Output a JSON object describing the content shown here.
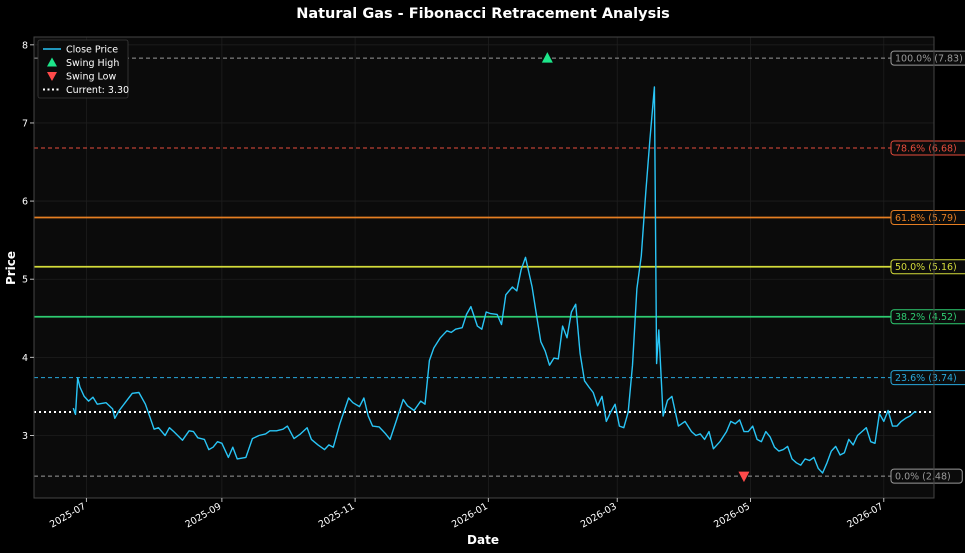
{
  "chart_data": {
    "type": "line",
    "title": "Natural Gas - Fibonacci Retracement Analysis",
    "xlabel": "Date",
    "ylabel": "Price",
    "ylim": [
      2.2,
      8.1
    ],
    "xlim": [
      "2025-06-07",
      "2026-07-24"
    ],
    "grid": true,
    "legend_placement": "top-left",
    "colors": {
      "background": "#000000",
      "plot_background": "#0b0b0b",
      "axes": "#444444",
      "grid": "#1e1e1e",
      "close_price": "#29c5f6",
      "swing_high": "#1de68a",
      "swing_low": "#ff4a4a",
      "current": "#ffffff"
    },
    "x_ticks": [
      {
        "date": "2025-07-01",
        "label": "2025-07"
      },
      {
        "date": "2025-09-01",
        "label": "2025-09"
      },
      {
        "date": "2025-11-01",
        "label": "2025-11"
      },
      {
        "date": "2026-01-01",
        "label": "2026-01"
      },
      {
        "date": "2026-03-01",
        "label": "2026-03"
      },
      {
        "date": "2026-05-01",
        "label": "2026-05"
      },
      {
        "date": "2026-07-01",
        "label": "2026-07"
      }
    ],
    "y_ticks": [
      3,
      4,
      5,
      6,
      7,
      8
    ],
    "legend": [
      {
        "key": "line",
        "label": "Close Price"
      },
      {
        "key": "swing_high",
        "label": "Swing High"
      },
      {
        "key": "swing_low",
        "label": "Swing Low"
      },
      {
        "key": "current",
        "label": "Current: 3.30"
      }
    ],
    "fib_levels": [
      {
        "label": "100.0% (7.83)",
        "value": 7.83,
        "color": "#9a9a9a",
        "style": "dashed"
      },
      {
        "label": "78.6% (6.68)",
        "value": 6.68,
        "color": "#e74c3c",
        "style": "dashed"
      },
      {
        "label": "61.8% (5.79)",
        "value": 5.79,
        "color": "#e67e22",
        "style": "solid"
      },
      {
        "label": "50.0% (5.16)",
        "value": 5.16,
        "color": "#d4dc3a",
        "style": "solid"
      },
      {
        "label": "38.2% (4.52)",
        "value": 4.52,
        "color": "#2ecc71",
        "style": "solid"
      },
      {
        "label": "23.6% (3.74)",
        "value": 3.74,
        "color": "#29a8dc",
        "style": "dashed"
      },
      {
        "label": "0.0% (2.48)",
        "value": 2.48,
        "color": "#9a9a9a",
        "style": "dashed"
      }
    ],
    "current_price": 3.3,
    "swing_high": {
      "date": "2026-01-28",
      "value": 7.83
    },
    "swing_low": {
      "date": "2026-04-28",
      "value": 2.48
    },
    "series": [
      {
        "name": "Close Price",
        "points": [
          [
            "2025-06-25",
            3.35
          ],
          [
            "2025-06-26",
            3.27
          ],
          [
            "2025-06-27",
            3.74
          ],
          [
            "2025-06-28",
            3.62
          ],
          [
            "2025-06-30",
            3.5
          ],
          [
            "2025-07-02",
            3.44
          ],
          [
            "2025-07-04",
            3.49
          ],
          [
            "2025-07-06",
            3.4
          ],
          [
            "2025-07-10",
            3.42
          ],
          [
            "2025-07-13",
            3.34
          ],
          [
            "2025-07-14",
            3.22
          ],
          [
            "2025-07-16",
            3.32
          ],
          [
            "2025-07-19",
            3.43
          ],
          [
            "2025-07-22",
            3.54
          ],
          [
            "2025-07-25",
            3.55
          ],
          [
            "2025-07-28",
            3.4
          ],
          [
            "2025-07-30",
            3.24
          ],
          [
            "2025-08-01",
            3.08
          ],
          [
            "2025-08-03",
            3.1
          ],
          [
            "2025-08-06",
            3.0
          ],
          [
            "2025-08-08",
            3.1
          ],
          [
            "2025-08-10",
            3.05
          ],
          [
            "2025-08-14",
            2.94
          ],
          [
            "2025-08-17",
            3.06
          ],
          [
            "2025-08-19",
            3.05
          ],
          [
            "2025-08-21",
            2.97
          ],
          [
            "2025-08-24",
            2.95
          ],
          [
            "2025-08-26",
            2.82
          ],
          [
            "2025-08-28",
            2.85
          ],
          [
            "2025-08-30",
            2.92
          ],
          [
            "2025-09-01",
            2.9
          ],
          [
            "2025-09-04",
            2.72
          ],
          [
            "2025-09-06",
            2.85
          ],
          [
            "2025-09-08",
            2.7
          ],
          [
            "2025-09-12",
            2.72
          ],
          [
            "2025-09-15",
            2.96
          ],
          [
            "2025-09-18",
            3.0
          ],
          [
            "2025-09-21",
            3.02
          ],
          [
            "2025-09-23",
            3.06
          ],
          [
            "2025-09-26",
            3.06
          ],
          [
            "2025-09-29",
            3.08
          ],
          [
            "2025-10-01",
            3.12
          ],
          [
            "2025-10-04",
            2.96
          ],
          [
            "2025-10-07",
            3.02
          ],
          [
            "2025-10-10",
            3.1
          ],
          [
            "2025-10-12",
            2.95
          ],
          [
            "2025-10-15",
            2.88
          ],
          [
            "2025-10-18",
            2.82
          ],
          [
            "2025-10-20",
            2.88
          ],
          [
            "2025-10-22",
            2.85
          ],
          [
            "2025-10-25",
            3.15
          ],
          [
            "2025-10-29",
            3.48
          ],
          [
            "2025-10-31",
            3.42
          ],
          [
            "2025-11-03",
            3.37
          ],
          [
            "2025-11-05",
            3.48
          ],
          [
            "2025-11-07",
            3.25
          ],
          [
            "2025-11-09",
            3.12
          ],
          [
            "2025-11-12",
            3.11
          ],
          [
            "2025-11-15",
            3.02
          ],
          [
            "2025-11-17",
            2.95
          ],
          [
            "2025-11-20",
            3.2
          ],
          [
            "2025-11-23",
            3.46
          ],
          [
            "2025-11-25",
            3.38
          ],
          [
            "2025-11-28",
            3.32
          ],
          [
            "2025-12-01",
            3.44
          ],
          [
            "2025-12-03",
            3.4
          ],
          [
            "2025-12-05",
            3.96
          ],
          [
            "2025-12-07",
            4.12
          ],
          [
            "2025-12-10",
            4.25
          ],
          [
            "2025-12-13",
            4.34
          ],
          [
            "2025-12-15",
            4.32
          ],
          [
            "2025-12-17",
            4.36
          ],
          [
            "2025-12-20",
            4.38
          ],
          [
            "2025-12-22",
            4.55
          ],
          [
            "2025-12-24",
            4.65
          ],
          [
            "2025-12-27",
            4.4
          ],
          [
            "2025-12-29",
            4.36
          ],
          [
            "2025-12-31",
            4.58
          ],
          [
            "2026-01-02",
            4.56
          ],
          [
            "2026-01-05",
            4.55
          ],
          [
            "2026-01-07",
            4.42
          ],
          [
            "2026-01-09",
            4.8
          ],
          [
            "2026-01-12",
            4.9
          ],
          [
            "2026-01-14",
            4.85
          ],
          [
            "2026-01-16",
            5.12
          ],
          [
            "2026-01-18",
            5.28
          ],
          [
            "2026-01-21",
            4.9
          ],
          [
            "2026-01-23",
            4.55
          ],
          [
            "2026-01-25",
            4.2
          ],
          [
            "2026-01-27",
            4.08
          ],
          [
            "2026-01-29",
            3.9
          ],
          [
            "2026-01-31",
            3.99
          ],
          [
            "2026-02-02",
            3.98
          ],
          [
            "2026-02-04",
            4.4
          ],
          [
            "2026-02-06",
            4.25
          ],
          [
            "2026-02-08",
            4.58
          ],
          [
            "2026-02-10",
            4.68
          ],
          [
            "2026-02-12",
            4.05
          ],
          [
            "2026-02-14",
            3.7
          ],
          [
            "2026-02-16",
            3.62
          ],
          [
            "2026-02-18",
            3.55
          ],
          [
            "2026-02-20",
            3.38
          ],
          [
            "2026-02-22",
            3.5
          ],
          [
            "2026-02-24",
            3.18
          ],
          [
            "2026-02-26",
            3.3
          ],
          [
            "2026-02-28",
            3.4
          ],
          [
            "2026-03-02",
            3.12
          ],
          [
            "2026-03-04",
            3.1
          ],
          [
            "2026-03-06",
            3.3
          ],
          [
            "2026-03-08",
            3.9
          ],
          [
            "2026-03-10",
            4.88
          ],
          [
            "2026-03-12",
            5.3
          ],
          [
            "2026-03-14",
            6.1
          ],
          [
            "2026-03-16",
            6.8
          ],
          [
            "2026-03-18",
            7.46
          ],
          [
            "2026-03-19",
            3.92
          ],
          [
            "2026-03-20",
            4.35
          ],
          [
            "2026-03-22",
            3.25
          ],
          [
            "2026-03-24",
            3.45
          ],
          [
            "2026-03-26",
            3.5
          ],
          [
            "2026-03-29",
            3.12
          ],
          [
            "2026-04-01",
            3.18
          ],
          [
            "2026-04-04",
            3.05
          ],
          [
            "2026-04-06",
            3.0
          ],
          [
            "2026-04-08",
            3.02
          ],
          [
            "2026-04-10",
            2.95
          ],
          [
            "2026-04-12",
            3.05
          ],
          [
            "2026-04-14",
            2.83
          ],
          [
            "2026-04-17",
            2.92
          ],
          [
            "2026-04-20",
            3.05
          ],
          [
            "2026-04-22",
            3.18
          ],
          [
            "2026-04-24",
            3.15
          ],
          [
            "2026-04-26",
            3.2
          ],
          [
            "2026-04-28",
            3.05
          ],
          [
            "2026-04-30",
            3.05
          ],
          [
            "2026-05-02",
            3.12
          ],
          [
            "2026-05-04",
            2.95
          ],
          [
            "2026-05-06",
            2.92
          ],
          [
            "2026-05-08",
            3.05
          ],
          [
            "2026-05-10",
            2.98
          ],
          [
            "2026-05-12",
            2.85
          ],
          [
            "2026-05-14",
            2.8
          ],
          [
            "2026-05-16",
            2.82
          ],
          [
            "2026-05-18",
            2.86
          ],
          [
            "2026-05-20",
            2.7
          ],
          [
            "2026-05-22",
            2.65
          ],
          [
            "2026-05-24",
            2.62
          ],
          [
            "2026-05-26",
            2.7
          ],
          [
            "2026-05-28",
            2.68
          ],
          [
            "2026-05-30",
            2.72
          ],
          [
            "2026-06-01",
            2.58
          ],
          [
            "2026-06-03",
            2.52
          ],
          [
            "2026-06-05",
            2.65
          ],
          [
            "2026-06-07",
            2.8
          ],
          [
            "2026-06-09",
            2.86
          ],
          [
            "2026-06-11",
            2.75
          ],
          [
            "2026-06-13",
            2.78
          ],
          [
            "2026-06-15",
            2.95
          ],
          [
            "2026-06-17",
            2.88
          ],
          [
            "2026-06-19",
            3.0
          ],
          [
            "2026-06-21",
            3.05
          ],
          [
            "2026-06-23",
            3.1
          ],
          [
            "2026-06-25",
            2.92
          ],
          [
            "2026-06-27",
            2.9
          ],
          [
            "2026-06-29",
            3.28
          ],
          [
            "2026-07-01",
            3.18
          ],
          [
            "2026-07-03",
            3.32
          ],
          [
            "2026-07-05",
            3.12
          ],
          [
            "2026-07-07",
            3.12
          ],
          [
            "2026-07-09",
            3.18
          ],
          [
            "2026-07-11",
            3.22
          ],
          [
            "2026-07-13",
            3.25
          ],
          [
            "2026-07-15",
            3.3
          ],
          [
            "2026-07-16",
            3.3
          ]
        ]
      }
    ]
  }
}
